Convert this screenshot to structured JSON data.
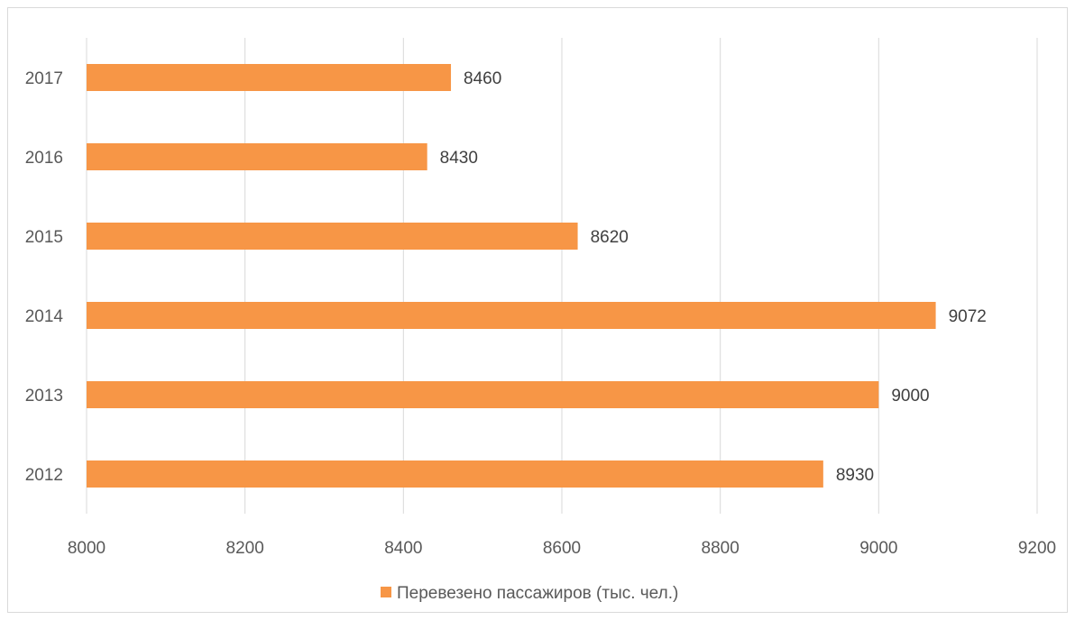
{
  "chart_data": {
    "type": "bar",
    "orientation": "horizontal",
    "categories": [
      "2012",
      "2013",
      "2014",
      "2015",
      "2016",
      "2017"
    ],
    "series": [
      {
        "name": "Перевезено пассажиров (тыс. чел.)",
        "values": [
          8930,
          9000,
          9072,
          8620,
          8430,
          8460
        ],
        "color": "#F79646"
      }
    ],
    "xlim": [
      8000,
      9200
    ],
    "xticks": [
      8000,
      8200,
      8400,
      8600,
      8800,
      9000,
      9200
    ],
    "grid": true,
    "gridline_color": "#d9d9d9",
    "legend_position": "bottom",
    "data_labels": true,
    "title": "",
    "xlabel": "",
    "ylabel": ""
  }
}
